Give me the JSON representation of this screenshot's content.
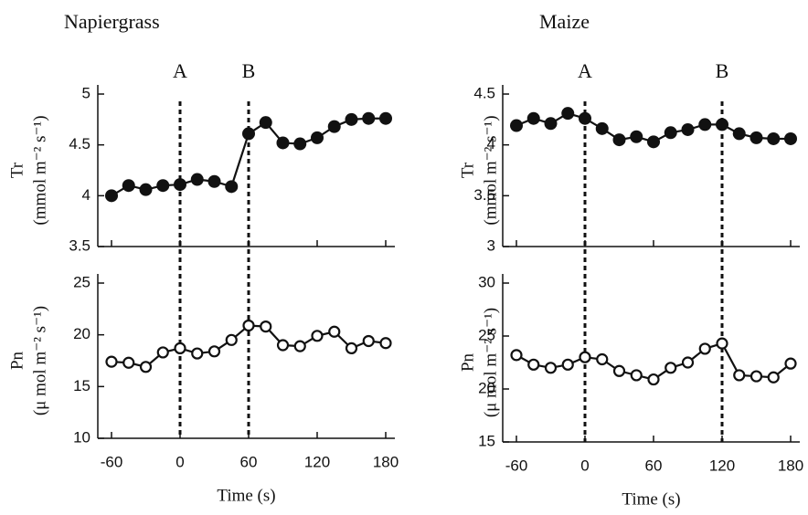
{
  "chart_data": [
    {
      "type": "line",
      "title": "Napiergrass",
      "ylabel": [
        "Tr",
        "(mmol m⁻² s⁻¹)"
      ],
      "x": [
        -60,
        -45,
        -30,
        -15,
        0,
        15,
        30,
        45,
        60,
        75,
        90,
        105,
        120,
        135,
        150,
        165,
        180
      ],
      "values": [
        4.0,
        4.1,
        4.06,
        4.1,
        4.11,
        4.16,
        4.14,
        4.09,
        4.61,
        4.72,
        4.52,
        4.51,
        4.57,
        4.68,
        4.75,
        4.76,
        4.76
      ],
      "marker": "filled",
      "color": "#111",
      "xlim": [
        -72,
        188
      ],
      "xticks": [
        -60,
        0,
        60,
        120,
        180
      ],
      "ylim": [
        3.5,
        5
      ],
      "yticks": [
        3.5,
        4,
        4.5,
        5
      ],
      "annotations": [
        {
          "text": "A",
          "x": 0
        },
        {
          "text": "B",
          "x": 60
        }
      ]
    },
    {
      "type": "line",
      "ylabel": [
        "Pn",
        "(μ mol m⁻² s⁻¹)"
      ],
      "xlabel": "Time (s)",
      "x": [
        -60,
        -45,
        -30,
        -15,
        0,
        15,
        30,
        45,
        60,
        75,
        90,
        105,
        120,
        135,
        150,
        165,
        180
      ],
      "values": [
        17.4,
        17.3,
        16.9,
        18.3,
        18.7,
        18.2,
        18.4,
        19.5,
        20.9,
        20.8,
        19.0,
        18.9,
        19.9,
        20.3,
        18.7,
        19.4,
        19.2
      ],
      "marker": "open",
      "color": "#111",
      "xlim": [
        -72,
        188
      ],
      "xticks": [
        -60,
        0,
        60,
        120,
        180
      ],
      "ylim": [
        10,
        25
      ],
      "yticks": [
        10,
        15,
        20,
        25
      ]
    },
    {
      "type": "line",
      "title": "Maize",
      "ylabel": [
        "Tr",
        "(mmol m⁻² s⁻¹)"
      ],
      "x": [
        -60,
        -45,
        -30,
        -15,
        0,
        15,
        30,
        45,
        60,
        75,
        90,
        105,
        120,
        135,
        150,
        165,
        180
      ],
      "values": [
        4.19,
        4.26,
        4.21,
        4.31,
        4.26,
        4.16,
        4.05,
        4.08,
        4.03,
        4.12,
        4.15,
        4.2,
        4.2,
        4.11,
        4.07,
        4.06,
        4.06
      ],
      "marker": "filled",
      "color": "#111",
      "xlim": [
        -72,
        188
      ],
      "xticks": [
        -60,
        0,
        60,
        120,
        180
      ],
      "ylim": [
        3,
        4.5
      ],
      "yticks": [
        3,
        3.5,
        4,
        4.5
      ],
      "annotations": [
        {
          "text": "A",
          "x": 0
        },
        {
          "text": "B",
          "x": 120
        }
      ]
    },
    {
      "type": "line",
      "ylabel": [
        "Pn",
        "(μ mol m⁻² s⁻¹)"
      ],
      "xlabel": "Time (s)",
      "x": [
        -60,
        -45,
        -30,
        -15,
        0,
        15,
        30,
        45,
        60,
        75,
        90,
        105,
        120,
        135,
        150,
        165,
        180
      ],
      "values": [
        23.2,
        22.3,
        22.0,
        22.3,
        23.0,
        22.8,
        21.7,
        21.3,
        20.9,
        22.0,
        22.5,
        23.8,
        24.3,
        21.3,
        21.2,
        21.1,
        22.4
      ],
      "marker": "open",
      "color": "#111",
      "xlim": [
        -72,
        188
      ],
      "xticks": [
        -60,
        0,
        60,
        120,
        180
      ],
      "ylim": [
        15,
        30
      ],
      "yticks": [
        15,
        20,
        25,
        30
      ]
    }
  ]
}
